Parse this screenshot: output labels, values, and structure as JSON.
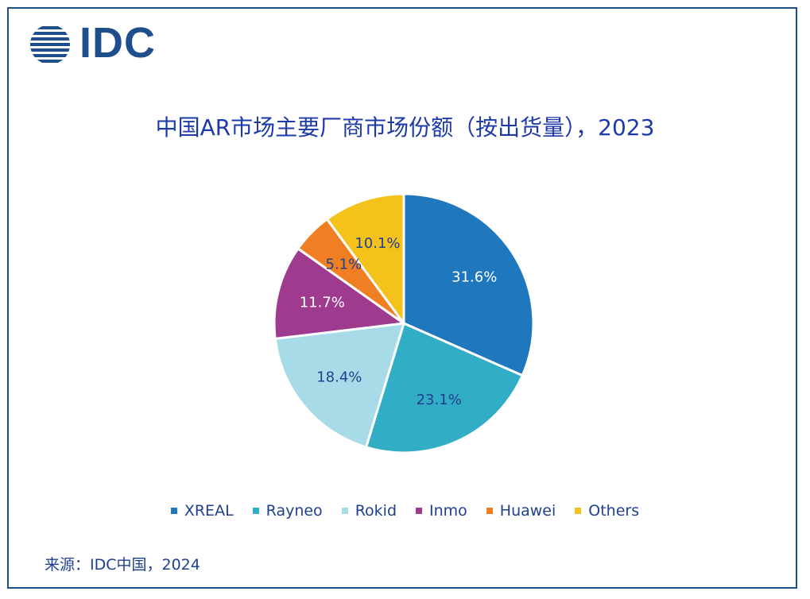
{
  "logo": {
    "text": "IDC"
  },
  "colors": {
    "brand": "#1f4e8c",
    "title": "#1d3aa8",
    "text": "#1f3f8f",
    "frame": "#1f4e8c"
  },
  "chart_data": {
    "type": "pie",
    "title": "中国AR市场主要厂商市场份额（按出货量），2023",
    "unit": "%",
    "start": "12 o'clock",
    "direction": "clockwise",
    "legend_position": "bottom",
    "slices": [
      {
        "name": "XREAL",
        "value": 31.6,
        "label": "31.6%",
        "color": "#1f78be",
        "label_color": "#ffffff"
      },
      {
        "name": "Rayneo",
        "value": 23.1,
        "label": "23.1%",
        "color": "#32adc6",
        "label_color": "#1f3f8f"
      },
      {
        "name": "Rokid",
        "value": 18.4,
        "label": "18.4%",
        "color": "#a7dbe8",
        "label_color": "#1f3f8f"
      },
      {
        "name": "Inmo",
        "value": 11.7,
        "label": "11.7%",
        "color": "#9e3b8f",
        "label_color": "#ffffff"
      },
      {
        "name": "Huawei",
        "value": 5.1,
        "label": "5.1%",
        "color": "#f07f23",
        "label_color": "#1f3f8f"
      },
      {
        "name": "Others",
        "value": 10.1,
        "label": "10.1%",
        "color": "#f4c21b",
        "label_color": "#1f3f8f"
      }
    ]
  },
  "source": {
    "text": "来源：IDC中国，2024"
  }
}
